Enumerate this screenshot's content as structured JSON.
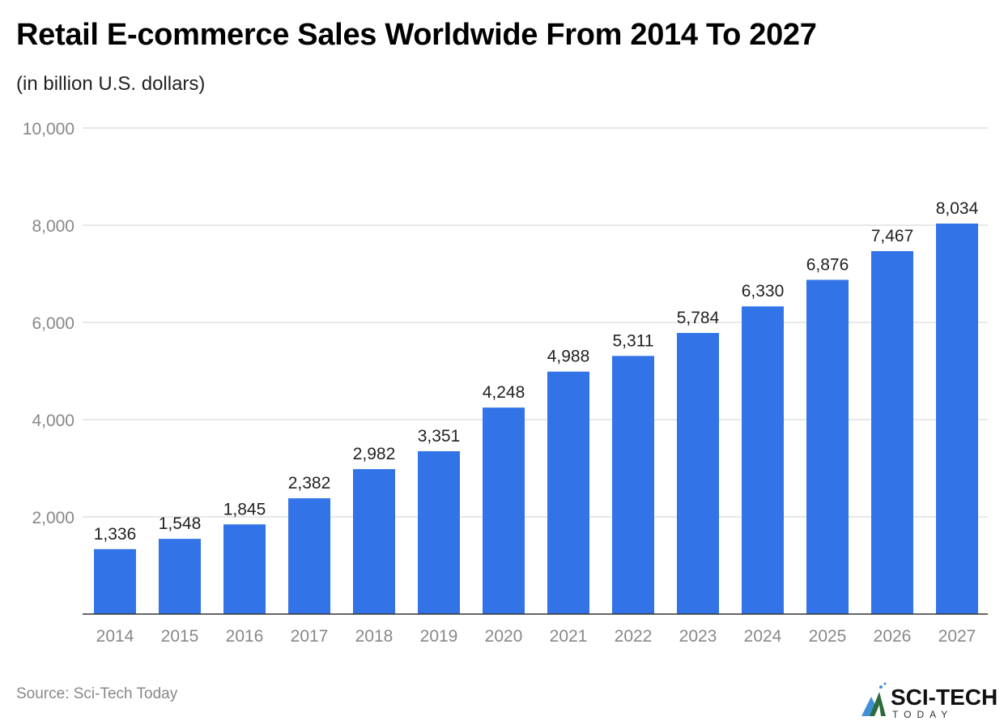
{
  "title": "Retail E-commerce Sales Worldwide From 2014 To 2027",
  "subtitle": "(in billion U.S. dollars)",
  "source": "Source: Sci-Tech Today",
  "logo": {
    "text": "SCI-TECH",
    "subtext": "TODAY"
  },
  "colors": {
    "bar": "#3274e8",
    "grid": "#e0e0e0",
    "tick": "#888888",
    "label": "#222222"
  },
  "chart_data": {
    "type": "bar",
    "title": "Retail E-commerce Sales Worldwide From 2014 To 2027",
    "subtitle": "(in billion U.S. dollars)",
    "categories": [
      "2014",
      "2015",
      "2016",
      "2017",
      "2018",
      "2019",
      "2020",
      "2021",
      "2022",
      "2023",
      "2024",
      "2025",
      "2026",
      "2027"
    ],
    "values": [
      1336,
      1548,
      1845,
      2382,
      2982,
      3351,
      4248,
      4988,
      5311,
      5784,
      6330,
      6876,
      7467,
      8034
    ],
    "data_labels": [
      "1,336",
      "1,548",
      "1,845",
      "2,382",
      "2,982",
      "3,351",
      "4,248",
      "4,988",
      "5,311",
      "5,784",
      "6,330",
      "6,876",
      "7,467",
      "8,034"
    ],
    "xlabel": "",
    "ylabel": "",
    "ylim": [
      0,
      10000
    ],
    "yticks": [
      2000,
      4000,
      6000,
      8000,
      10000
    ],
    "ytick_labels": [
      "2,000",
      "4,000",
      "6,000",
      "8,000",
      "10,000"
    ],
    "grid": true,
    "legend": "none"
  }
}
